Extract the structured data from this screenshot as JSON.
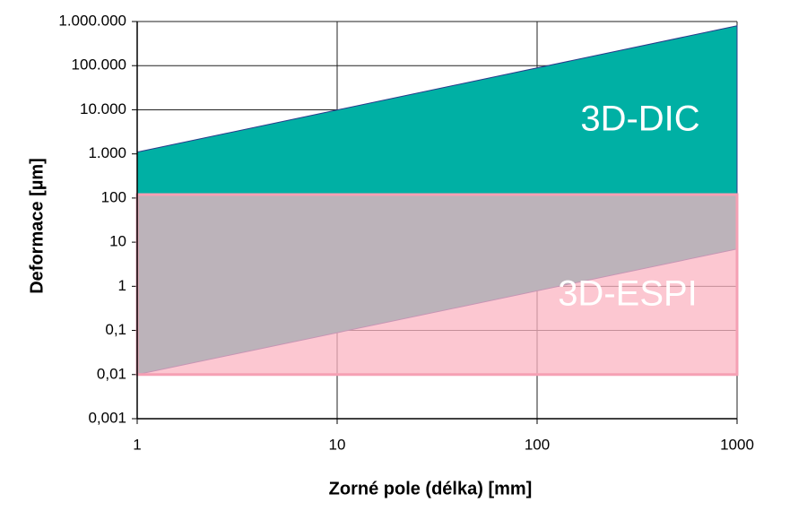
{
  "chart_data": {
    "type": "range_area",
    "x_label": "Zorné pole (délka) [mm]",
    "y_label": "Deformace [µm]",
    "x_log": true,
    "y_log": true,
    "grid": true,
    "xlim": [
      1,
      1000
    ],
    "xticks": [
      1,
      10,
      100,
      1000
    ],
    "ylim": [
      0.001,
      1000000
    ],
    "yticks": [
      {
        "value": 0.001,
        "label": "0,001"
      },
      {
        "value": 0.01,
        "label": "0,01"
      },
      {
        "value": 0.1,
        "label": "0,1"
      },
      1,
      10,
      100,
      {
        "value": 1000,
        "label": "1.000"
      },
      {
        "value": 10000,
        "label": "10.000"
      },
      {
        "value": 100000,
        "label": "100.000"
      },
      {
        "value": 1000000,
        "label": "1.000.000"
      }
    ],
    "series": [
      {
        "name": "3D-DIC",
        "color": "#00b0a4",
        "x": [
          1,
          1000
        ],
        "lower": [
          0.01,
          7
        ],
        "upper": [
          1100,
          800000
        ]
      },
      {
        "name": "3D-ESPI",
        "color": "#fbb4c2",
        "x": [
          1,
          1000
        ],
        "lower": [
          0.01,
          0.01
        ],
        "upper": [
          120,
          120
        ]
      }
    ]
  }
}
